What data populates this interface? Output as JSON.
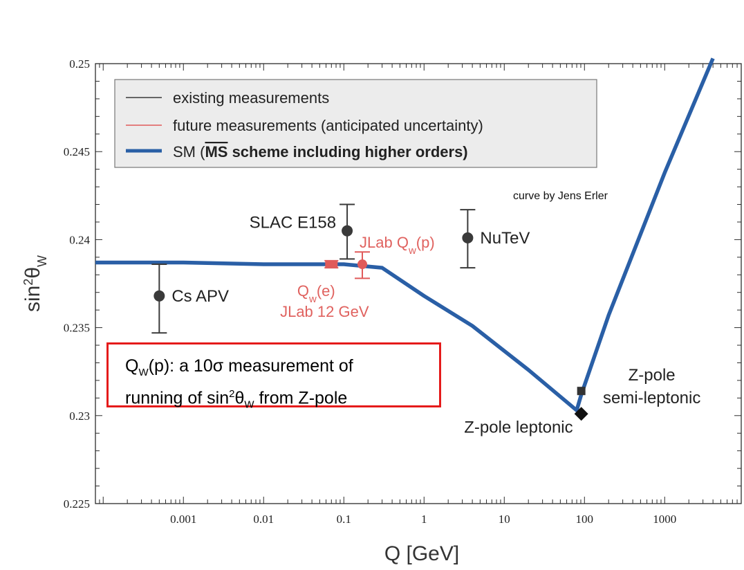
{
  "chart_data": {
    "type": "line",
    "xlabel": "Q [GeV]",
    "ylabel": "sin²θW",
    "x_scale": "log",
    "xlim": [
      8e-05,
      9000
    ],
    "ylim": [
      0.225,
      0.25
    ],
    "x_ticks": [
      {
        "value": 0.001,
        "label": "0.001"
      },
      {
        "value": 0.01,
        "label": "0.01"
      },
      {
        "value": 0.1,
        "label": "0.1"
      },
      {
        "value": 1,
        "label": "1"
      },
      {
        "value": 10,
        "label": "10"
      },
      {
        "value": 100,
        "label": "100"
      },
      {
        "value": 1000,
        "label": "1000"
      }
    ],
    "y_ticks": [
      {
        "value": 0.225,
        "label": "0.225"
      },
      {
        "value": 0.23,
        "label": "0.23"
      },
      {
        "value": 0.235,
        "label": "0.235"
      },
      {
        "value": 0.24,
        "label": "0.24"
      },
      {
        "value": 0.245,
        "label": "0.245"
      },
      {
        "value": 0.25,
        "label": "0.25"
      }
    ],
    "legend": {
      "placement": "top-left",
      "entries": [
        {
          "label": "existing measurements",
          "color": "#3a3a3a",
          "style": "thin"
        },
        {
          "label": "future measurements (anticipated uncertainty)",
          "color": "#e05a5a",
          "style": "thin"
        },
        {
          "label_prefix": "SM (",
          "label_overlined": "MS",
          "label_suffix": " scheme including higher orders)",
          "color": "#2a5fa6",
          "style": "thick"
        }
      ]
    },
    "series": [
      {
        "name": "SM (MS scheme including higher orders)",
        "color": "#2a5fa6",
        "points": [
          {
            "x": 8e-05,
            "y": 0.2387
          },
          {
            "x": 0.001,
            "y": 0.2387
          },
          {
            "x": 0.01,
            "y": 0.2386
          },
          {
            "x": 0.1,
            "y": 0.2386
          },
          {
            "x": 0.3,
            "y": 0.2384
          },
          {
            "x": 1,
            "y": 0.2368
          },
          {
            "x": 4,
            "y": 0.2351
          },
          {
            "x": 20,
            "y": 0.2326
          },
          {
            "x": 80,
            "y": 0.2303
          },
          {
            "x": 91.2,
            "y": 0.2312
          },
          {
            "x": 200,
            "y": 0.2357
          },
          {
            "x": 1000,
            "y": 0.2438
          },
          {
            "x": 4000,
            "y": 0.2503
          }
        ]
      }
    ],
    "measurements": [
      {
        "label": "Cs APV",
        "x": 0.0005,
        "y": 0.2368,
        "err_lo": 0.2347,
        "err_hi": 0.2386,
        "kind": "existing",
        "marker": "circle"
      },
      {
        "label": "SLAC E158",
        "x": 0.11,
        "y": 0.2405,
        "err_lo": 0.2389,
        "err_hi": 0.242,
        "kind": "existing",
        "marker": "circle"
      },
      {
        "label": "NuTeV",
        "x": 3.5,
        "y": 0.2401,
        "err_lo": 0.2384,
        "err_hi": 0.2417,
        "kind": "existing",
        "marker": "circle"
      },
      {
        "label_main": "Q",
        "label_sub": "w",
        "label_tail": "(e)",
        "label_line2": "JLab 12 GeV",
        "x": 0.07,
        "y": 0.2386,
        "err_lo": 0.2384,
        "err_hi": 0.2388,
        "kind": "future",
        "marker": "circle"
      },
      {
        "label_main": "JLab Q",
        "label_sub": "w",
        "label_tail": "(p)",
        "x": 0.17,
        "y": 0.2386,
        "err_lo": 0.2378,
        "err_hi": 0.2393,
        "kind": "future",
        "marker": "circle"
      },
      {
        "label": "Z-pole leptonic",
        "x": 91.2,
        "y": 0.2301,
        "kind": "existing",
        "marker": "diamond"
      },
      {
        "label_line1": "Z-pole",
        "label_line2": "semi-leptonic",
        "x": 91.2,
        "y": 0.2314,
        "kind": "existing",
        "marker": "square"
      }
    ],
    "annotation": "curve by Jens Erler",
    "callout": {
      "q": "Q",
      "q_sub": "W",
      "text1": "(p): a 10",
      "sigma": "σ",
      "text2": " measurement of",
      "line2_prefix": "running of sin",
      "sup": "2",
      "theta": "θ",
      "theta_sub": "W",
      "line2_suffix": " from Z-pole"
    }
  }
}
